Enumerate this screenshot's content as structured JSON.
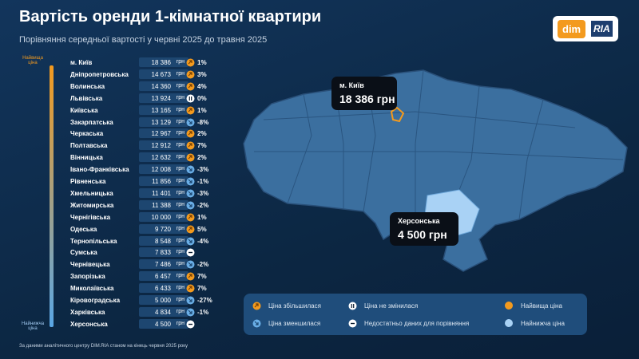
{
  "header": {
    "title": "Вартість оренди 1-кімнатної квартири",
    "subtitle": "Порівняння середньої вартості у червні 2025 до травня 2025"
  },
  "logo": {
    "left": "dim",
    "right": "RIA"
  },
  "scale": {
    "top": "Найвища ціна",
    "bottom": "Найнижча ціна"
  },
  "table": {
    "unit": "грн",
    "rows": [
      {
        "region": "м. Київ",
        "price": "18 386",
        "direction": "up",
        "change": "1%"
      },
      {
        "region": "Дніпропетровська",
        "price": "14 673",
        "direction": "up",
        "change": "3%"
      },
      {
        "region": "Волинська",
        "price": "14 360",
        "direction": "up",
        "change": "4%"
      },
      {
        "region": "Львівська",
        "price": "13 924",
        "direction": "same",
        "change": "0%"
      },
      {
        "region": "Київська",
        "price": "13 165",
        "direction": "up",
        "change": "1%"
      },
      {
        "region": "Закарпатська",
        "price": "13 129",
        "direction": "down",
        "change": "-8%"
      },
      {
        "region": "Черкаська",
        "price": "12 967",
        "direction": "up",
        "change": "2%"
      },
      {
        "region": "Полтавська",
        "price": "12 912",
        "direction": "up",
        "change": "7%"
      },
      {
        "region": "Вінницька",
        "price": "12 632",
        "direction": "up",
        "change": "2%"
      },
      {
        "region": "Івано-Франківська",
        "price": "12 008",
        "direction": "down",
        "change": "-3%"
      },
      {
        "region": "Рівненська",
        "price": "11 856",
        "direction": "down",
        "change": "-1%"
      },
      {
        "region": "Хмельницька",
        "price": "11 401",
        "direction": "down",
        "change": "-3%"
      },
      {
        "region": "Житомирська",
        "price": "11 388",
        "direction": "down",
        "change": "-2%"
      },
      {
        "region": "Чернігівська",
        "price": "10 000",
        "direction": "up",
        "change": "1%"
      },
      {
        "region": "Одеська",
        "price": "9 720",
        "direction": "up",
        "change": "5%"
      },
      {
        "region": "Тернопільська",
        "price": "8 548",
        "direction": "down",
        "change": "-4%"
      },
      {
        "region": "Сумська",
        "price": "7 833",
        "direction": "none"
      },
      {
        "region": "Чернівецька",
        "price": "7 486",
        "direction": "down",
        "change": "-2%"
      },
      {
        "region": "Запорізька",
        "price": "6 457",
        "direction": "up",
        "change": "7%"
      },
      {
        "region": "Миколаївська",
        "price": "6 433",
        "direction": "up",
        "change": "7%"
      },
      {
        "region": "Кіровоградська",
        "price": "5 000",
        "direction": "down",
        "change": "-27%"
      },
      {
        "region": "Харківська",
        "price": "4 834",
        "direction": "down",
        "change": "-1%"
      },
      {
        "region": "Херсонська",
        "price": "4 500",
        "direction": "none"
      }
    ]
  },
  "callouts": [
    {
      "name": "м. Київ",
      "price": "18 386 грн"
    },
    {
      "name": "Херсонська",
      "price": "4 500 грн"
    }
  ],
  "legend": [
    "Ціна збільшилася",
    "Ціна не змінилася",
    "Найвища ціна",
    "Ціна зменшилася",
    "Недостатньо даних для порівняння",
    "Найнижча ціна"
  ],
  "footnote": "За даними аналітичного центру DIM.RIA станом на кінець червня 2025 року"
}
